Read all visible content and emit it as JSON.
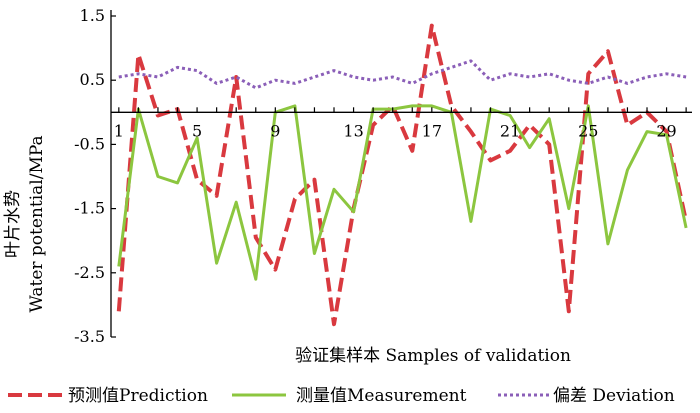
{
  "chart_data": {
    "type": "line",
    "xlabel": "验证集样本  Samples of validation",
    "ylabel_line1": "叶片水势",
    "ylabel_line2": "Water potential/MPa",
    "xlim": [
      1,
      30
    ],
    "ylim": [
      -3.5,
      1.5
    ],
    "xticks": [
      1,
      5,
      9,
      13,
      17,
      21,
      25,
      29
    ],
    "xtick_labels": [
      "1",
      "5",
      "9",
      "13",
      "17",
      "21",
      "25",
      "29"
    ],
    "yticks": [
      1.5,
      0.5,
      -0.5,
      -1.5,
      -2.5,
      -3.5
    ],
    "ytick_labels": [
      "1.5",
      "0.5",
      "-0.5",
      "-1.5",
      "-2.5",
      "-3.5"
    ],
    "grid": false,
    "legend_position": "bottom",
    "x": [
      1,
      2,
      3,
      4,
      5,
      6,
      7,
      8,
      9,
      10,
      11,
      12,
      13,
      14,
      15,
      16,
      17,
      18,
      19,
      20,
      21,
      22,
      23,
      24,
      25,
      26,
      27,
      28,
      29,
      30
    ],
    "series": [
      {
        "name": "预测值Prediction",
        "style": "dashed",
        "color": "#d9393f",
        "values": [
          -3.1,
          0.9,
          -0.05,
          0.05,
          -1.05,
          -1.3,
          0.55,
          -1.95,
          -2.45,
          -1.35,
          -1.05,
          -3.3,
          -1.5,
          -0.2,
          0.1,
          -0.6,
          1.35,
          0.1,
          -0.3,
          -0.75,
          -0.6,
          -0.2,
          -0.5,
          -3.1,
          0.6,
          0.95,
          -0.2,
          0.0,
          -0.3,
          -1.7
        ]
      },
      {
        "name": "测量值Measurement",
        "style": "solid",
        "color": "#8cc63f",
        "values": [
          -2.4,
          0.05,
          -1.0,
          -1.1,
          -0.4,
          -2.35,
          -1.4,
          -2.6,
          0.0,
          0.1,
          -2.2,
          -1.2,
          -1.55,
          0.05,
          0.05,
          0.1,
          0.1,
          0.0,
          -1.7,
          0.05,
          -0.05,
          -0.55,
          -0.1,
          -1.5,
          0.1,
          -2.05,
          -0.9,
          -0.3,
          -0.35,
          -1.8
        ]
      },
      {
        "name": "偏差 Deviation",
        "style": "dotted",
        "color": "#8b5fb8",
        "values": [
          0.55,
          0.6,
          0.55,
          0.7,
          0.65,
          0.45,
          0.55,
          0.38,
          0.5,
          0.45,
          0.55,
          0.65,
          0.55,
          0.5,
          0.55,
          0.45,
          0.6,
          0.7,
          0.8,
          0.5,
          0.6,
          0.55,
          0.6,
          0.5,
          0.45,
          0.55,
          0.45,
          0.55,
          0.6,
          0.55
        ]
      }
    ]
  }
}
